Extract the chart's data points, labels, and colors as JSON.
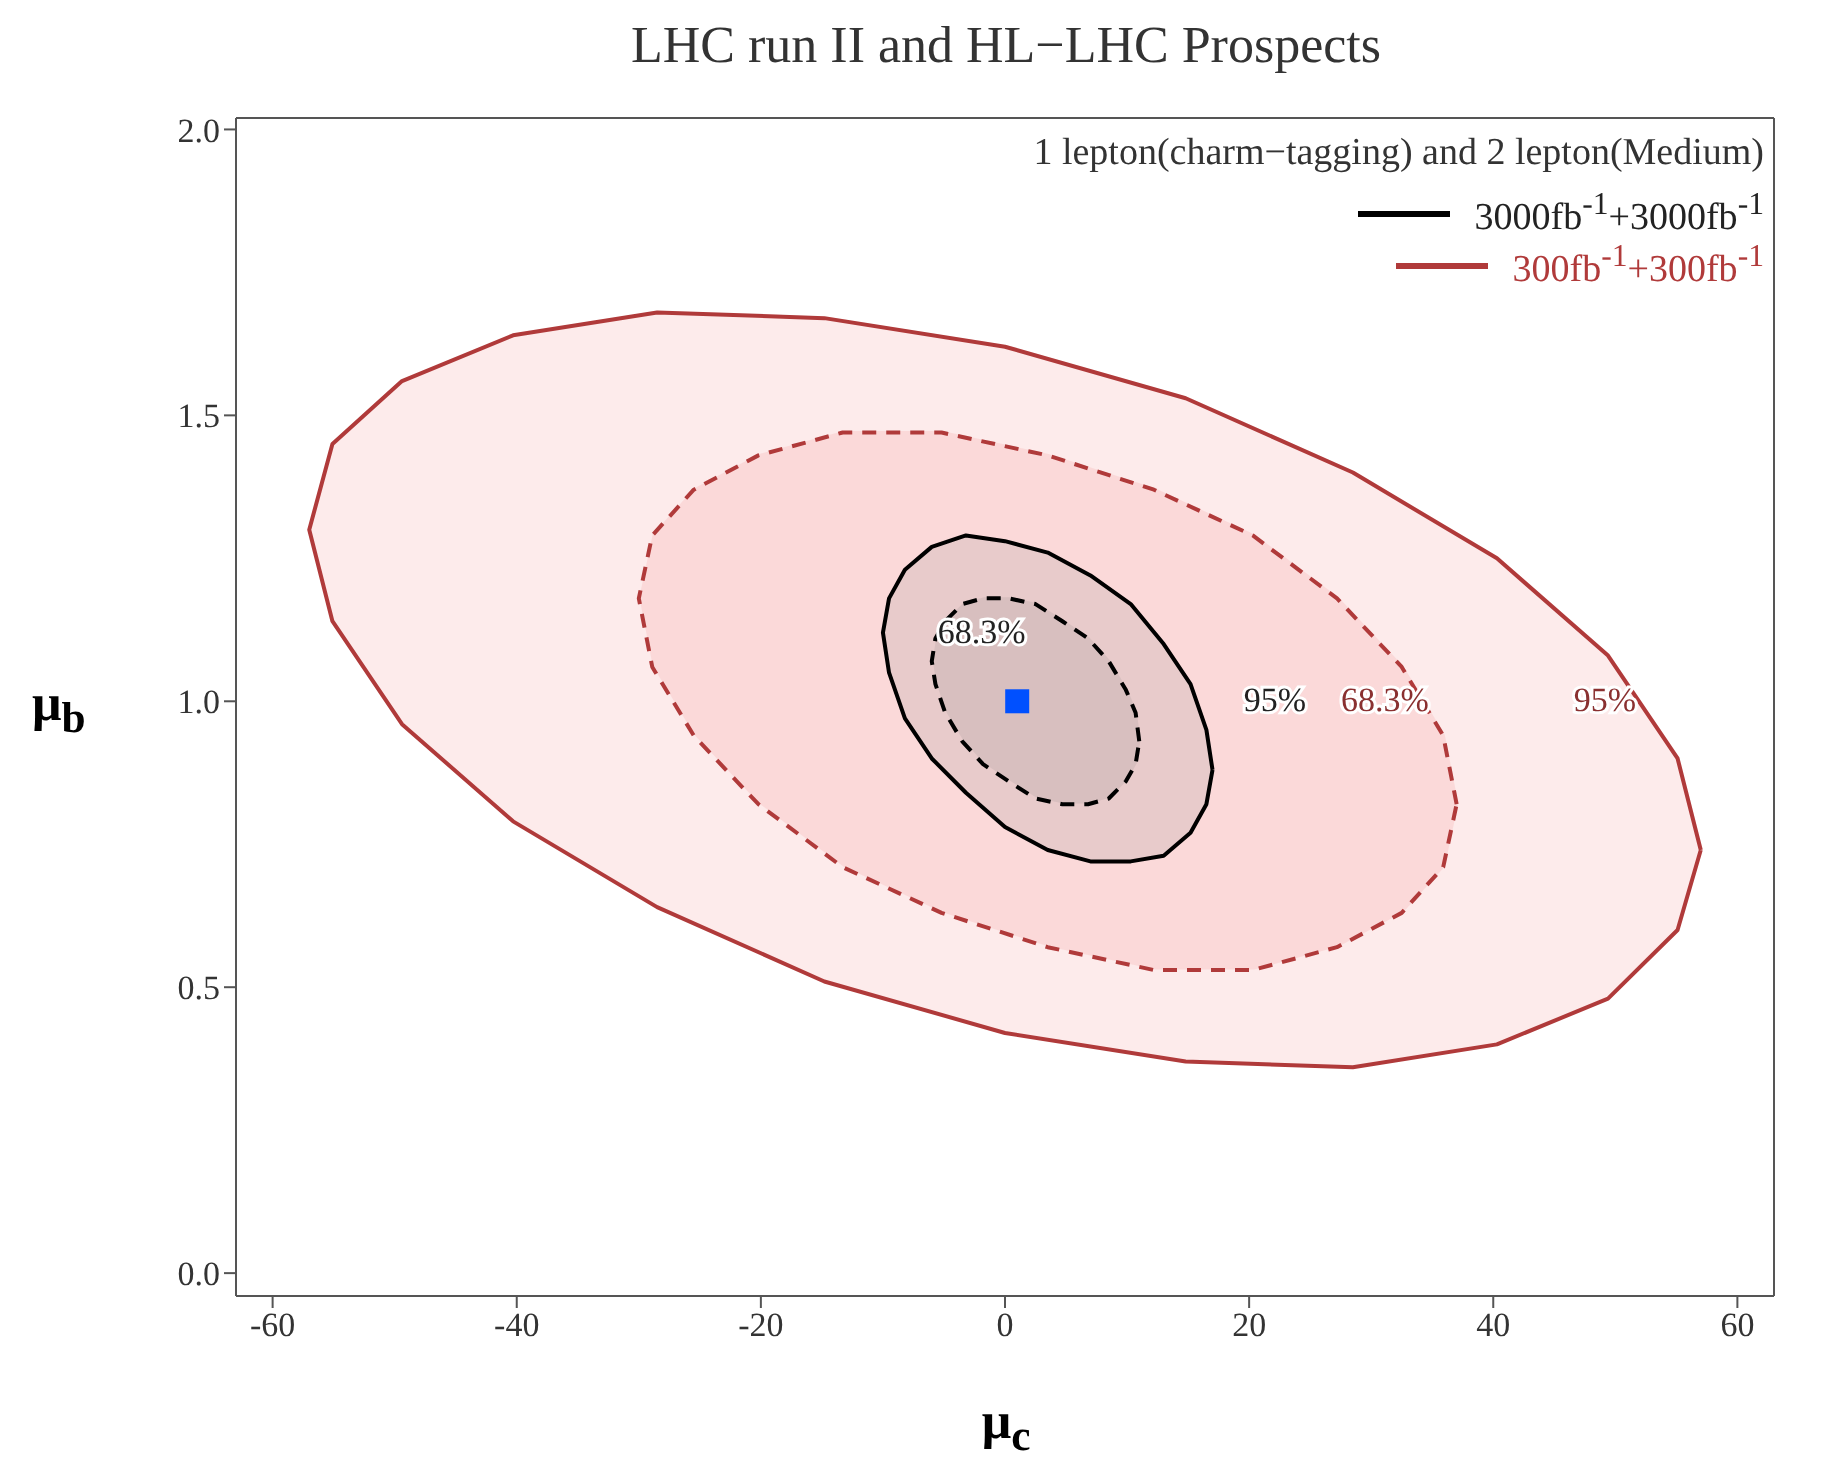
{
  "chart_data": {
    "type": "area",
    "title": "LHC run II and HL−LHC Prospects",
    "xlabel": "μ$_{c}$",
    "ylabel": "μ$_{b}$",
    "legend_title": "1 lepton(charm−tagging) and 2 lepton(Medium)",
    "legend": "top right",
    "xlim": [
      -63,
      63
    ],
    "xticks": [
      -60,
      -40,
      -20,
      0,
      20,
      40,
      60
    ],
    "ylim": [
      -0.04,
      2.02
    ],
    "yticks": [
      {
        "value": 0,
        "label": "0.0"
      },
      {
        "value": 0.5,
        "label": "0.5"
      },
      {
        "value": 1,
        "label": "1.0"
      },
      {
        "value": 1.5,
        "label": "1.5"
      },
      {
        "value": 2,
        "label": "2.0"
      }
    ],
    "series": [
      {
        "name": "300fb$^{-1}$+300fb$^{-1}$",
        "color": "#b03a3a",
        "line_style": "solid",
        "x": [
          57,
          55.1,
          49.4,
          40.3,
          28.5,
          14.8,
          0,
          -14.8,
          -28.5,
          -40.3,
          -49.4,
          -55.1,
          -57,
          -55.1,
          -49.4,
          -40.3,
          -28.5,
          -14.8,
          0,
          14.8,
          28.5,
          40.3,
          49.4,
          55.1,
          57
        ],
        "values": [
          0.74,
          0.9,
          1.08,
          1.25,
          1.4,
          1.53,
          1.62,
          1.67,
          1.68,
          1.64,
          1.56,
          1.45,
          1.3,
          1.14,
          0.96,
          0.79,
          0.64,
          0.51,
          0.42,
          0.37,
          0.36,
          0.4,
          0.48,
          0.6,
          0.74
        ]
      },
      {
        "color": "#b03a3a",
        "line_style": "dashed",
        "x": [
          37,
          35.9,
          32.5,
          27.2,
          20.3,
          12.2,
          3.5,
          -5.2,
          -13.3,
          -20.2,
          -25.5,
          -28.9,
          -30,
          -28.9,
          -25.5,
          -20.2,
          -13.3,
          -5.2,
          3.5,
          12.2,
          20.3,
          27.2,
          32.5,
          35.9,
          37
        ],
        "values": [
          0.82,
          0.94,
          1.06,
          1.18,
          1.29,
          1.37,
          1.43,
          1.47,
          1.47,
          1.43,
          1.37,
          1.29,
          1.18,
          1.06,
          0.94,
          0.82,
          0.71,
          0.63,
          0.57,
          0.53,
          0.53,
          0.57,
          0.63,
          0.71,
          0.82
        ]
      },
      {
        "name": "3000fb$^{-1}$+3000fb$^{-1}$",
        "color": "#000000",
        "line_style": "solid",
        "x": [
          17,
          16.5,
          15.2,
          13,
          10.3,
          7,
          3.5,
          0,
          -3.2,
          -6,
          -8.2,
          -9.5,
          -10,
          -9.5,
          -8.2,
          -6,
          -3.2,
          0,
          3.5,
          7,
          10.3,
          13,
          15.2,
          16.5,
          17
        ],
        "values": [
          0.88,
          0.95,
          1.03,
          1.1,
          1.17,
          1.22,
          1.26,
          1.28,
          1.29,
          1.27,
          1.23,
          1.18,
          1.12,
          1.05,
          0.97,
          0.9,
          0.84,
          0.78,
          0.74,
          0.72,
          0.72,
          0.73,
          0.77,
          0.82,
          0.88
        ]
      },
      {
        "color": "#000000",
        "line_style": "dashed",
        "x": [
          11,
          10.7,
          9.9,
          8.5,
          6.8,
          4.7,
          2.5,
          0.3,
          -1.8,
          -3.5,
          -4.9,
          -5.7,
          -6,
          -5.7,
          -4.9,
          -3.5,
          -1.8,
          0.3,
          2.5,
          4.7,
          6.8,
          8.5,
          9.9,
          10.7,
          11
        ],
        "values": [
          0.93,
          0.98,
          1.02,
          1.07,
          1.11,
          1.14,
          1.17,
          1.18,
          1.18,
          1.17,
          1.14,
          1.11,
          1.07,
          1.03,
          0.98,
          0.93,
          0.89,
          0.86,
          0.83,
          0.82,
          0.82,
          0.83,
          0.86,
          0.89,
          0.93
        ]
      },
      {
        "type": "scatter",
        "marker": "square",
        "color": "#0050ff",
        "x": [
          1
        ],
        "values": [
          1
        ]
      }
    ],
    "annotations": [
      "68.3%",
      "95%",
      "68.3%",
      "95%"
    ]
  }
}
